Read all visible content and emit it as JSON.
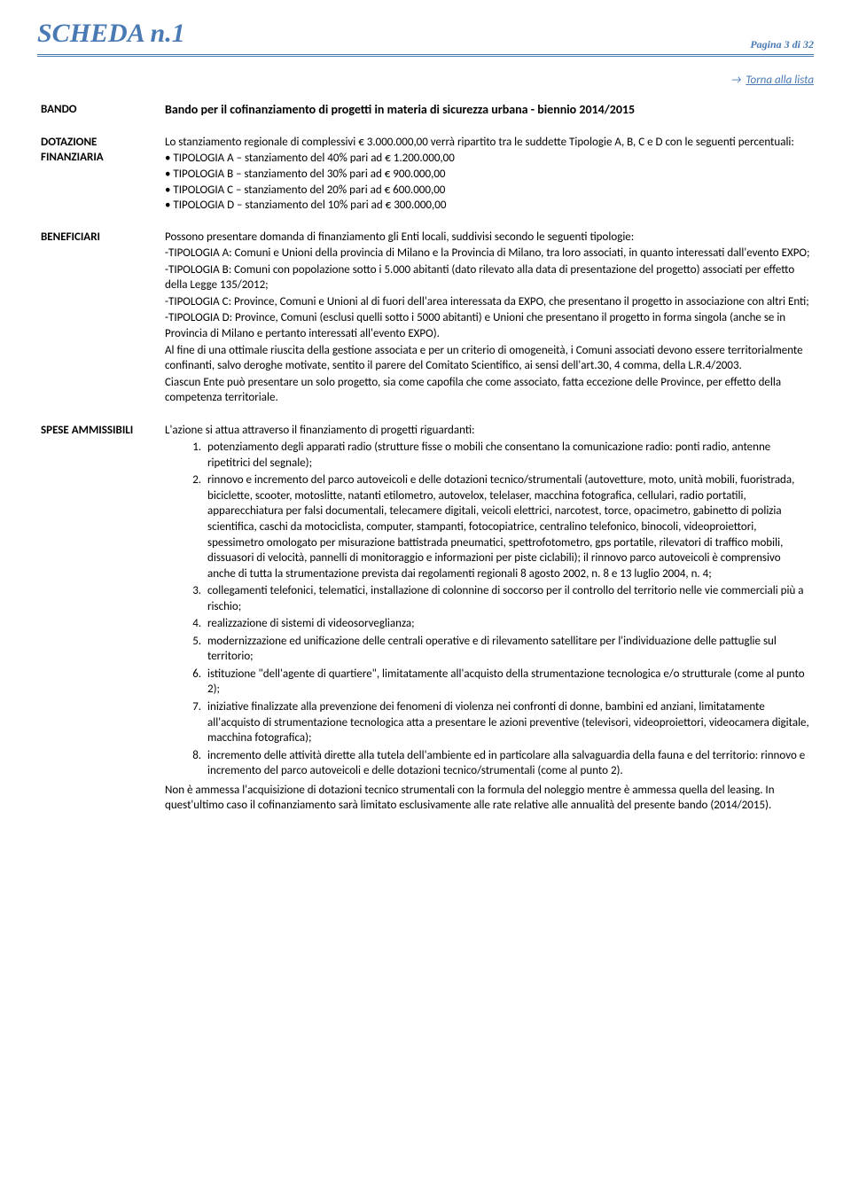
{
  "header": {
    "title": "SCHEDA n.1",
    "page_label": "Pagina 3 di 32"
  },
  "link": {
    "arrow": "→",
    "text": "Torna alla lista"
  },
  "labels": {
    "bando": "BANDO",
    "dotazione": "DOTAZIONE FINANZIARIA",
    "beneficiari": "BENEFICIARI",
    "spese": "SPESE AMMISSIBILI"
  },
  "bando": {
    "title": "Bando per il cofinanziamento di progetti in materia di sicurezza urbana - biennio 2014/2015"
  },
  "dotazione": {
    "intro": "Lo stanziamento regionale di complessivi € 3.000.000,00 verrà ripartito tra le suddette Tipologie A, B, C e D con le seguenti percentuali:",
    "lines": [
      "• TIPOLOGIA A – stanziamento del 40% pari ad € 1.200.000,00",
      "• TIPOLOGIA B – stanziamento del 30% pari ad €    900.000,00",
      "• TIPOLOGIA C – stanziamento del 20% pari ad €    600.000,00",
      "• TIPOLOGIA D – stanziamento del 10% pari ad €    300.000,00"
    ]
  },
  "beneficiari": {
    "p1": "Possono presentare domanda di finanziamento gli Enti locali, suddivisi secondo le seguenti tipologie:",
    "p2": "-TIPOLOGIA A: Comuni e Unioni della provincia di Milano e la Provincia di Milano, tra loro associati, in quanto interessati dall'evento EXPO;",
    "p3": "-TIPOLOGIA B: Comuni con popolazione sotto i 5.000 abitanti (dato rilevato alla data di presentazione del progetto) associati per effetto della Legge 135/2012;",
    "p4": "-TIPOLOGIA C:  Province, Comuni e Unioni al di fuori dell'area interessata da EXPO, che presentano il progetto in associazione con altri Enti;",
    "p5": "-TIPOLOGIA D: Province, Comuni (esclusi quelli sotto i 5000 abitanti) e Unioni che presentano il progetto in forma singola (anche se in Provincia di Milano e pertanto interessati all'evento EXPO).",
    "p6": "Al fine di una ottimale riuscita della gestione associata e per un criterio di omogeneità, i Comuni associati devono essere territorialmente confinanti, salvo deroghe motivate, sentito il parere del Comitato Scientifico, ai sensi dell'art.30, 4 comma, della L.R.4/2003.",
    "p7": "Ciascun Ente può presentare un solo progetto, sia come capofila che come associato, fatta eccezione delle Province, per effetto della competenza territoriale."
  },
  "spese": {
    "intro": "L'azione si attua attraverso il finanziamento di progetti riguardanti:",
    "items": [
      "potenziamento degli apparati radio (strutture fisse o mobili che consentano la comunicazione radio: ponti radio, antenne ripetitrici del segnale);",
      "rinnovo e incremento del parco autoveicoli  e delle dotazioni tecnico/strumentali (autovetture, moto, unità mobili, fuoristrada, biciclette, scooter, motoslitte, natanti etilometro, autovelox, telelaser, macchina fotografica, cellulari, radio portatili, apparecchiatura per falsi documentali, telecamere digitali, veicoli elettrici, narcotest, torce, opacimetro, gabinetto di polizia scientifica, caschi da motociclista, computer, stampanti, fotocopiatrice, centralino telefonico, binocoli, videoproiettori, spessimetro omologato per misurazione battistrada pneumatici, spettrofotometro, gps portatile, rilevatori di traffico mobili, dissuasori di velocità, pannelli di monitoraggio e informazioni per piste ciclabili); il rinnovo parco autoveicoli è comprensivo anche di tutta la strumentazione prevista dai regolamenti regionali 8 agosto 2002, n. 8 e 13 luglio 2004, n. 4;",
      "collegamenti telefonici, telematici, installazione di colonnine di soccorso per il controllo del territorio nelle vie commerciali più a rischio;",
      "realizzazione di sistemi di videosorveglianza;",
      "modernizzazione ed unificazione delle centrali operative e di rilevamento satellitare per l'individuazione delle pattuglie sul territorio;",
      "istituzione \"dell'agente di quartiere\", limitatamente all'acquisto della strumentazione tecnologica e/o strutturale (come al punto 2);",
      "iniziative finalizzate alla prevenzione dei fenomeni di violenza nei confronti di donne, bambini ed anziani, limitatamente all'acquisto di strumentazione tecnologica atta a presentare le azioni preventive (televisori, videoproiettori, videocamera digitale, macchina fotografica);",
      "incremento delle attività dirette alla tutela dell'ambiente ed in particolare alla salvaguardia della fauna e del territorio: rinnovo e incremento del parco autoveicoli e delle dotazioni tecnico/strumentali (come al punto 2)."
    ],
    "outro": "Non è ammessa l'acquisizione di dotazioni tecnico strumentali con la formula del noleggio mentre è ammessa quella del leasing. In quest'ultimo caso il cofinanziamento sarà limitato esclusivamente alle rate relative alle annualità del presente bando (2014/2015)."
  },
  "colors": {
    "accent": "#4a7ab4",
    "text": "#000000",
    "background": "#ffffff"
  }
}
